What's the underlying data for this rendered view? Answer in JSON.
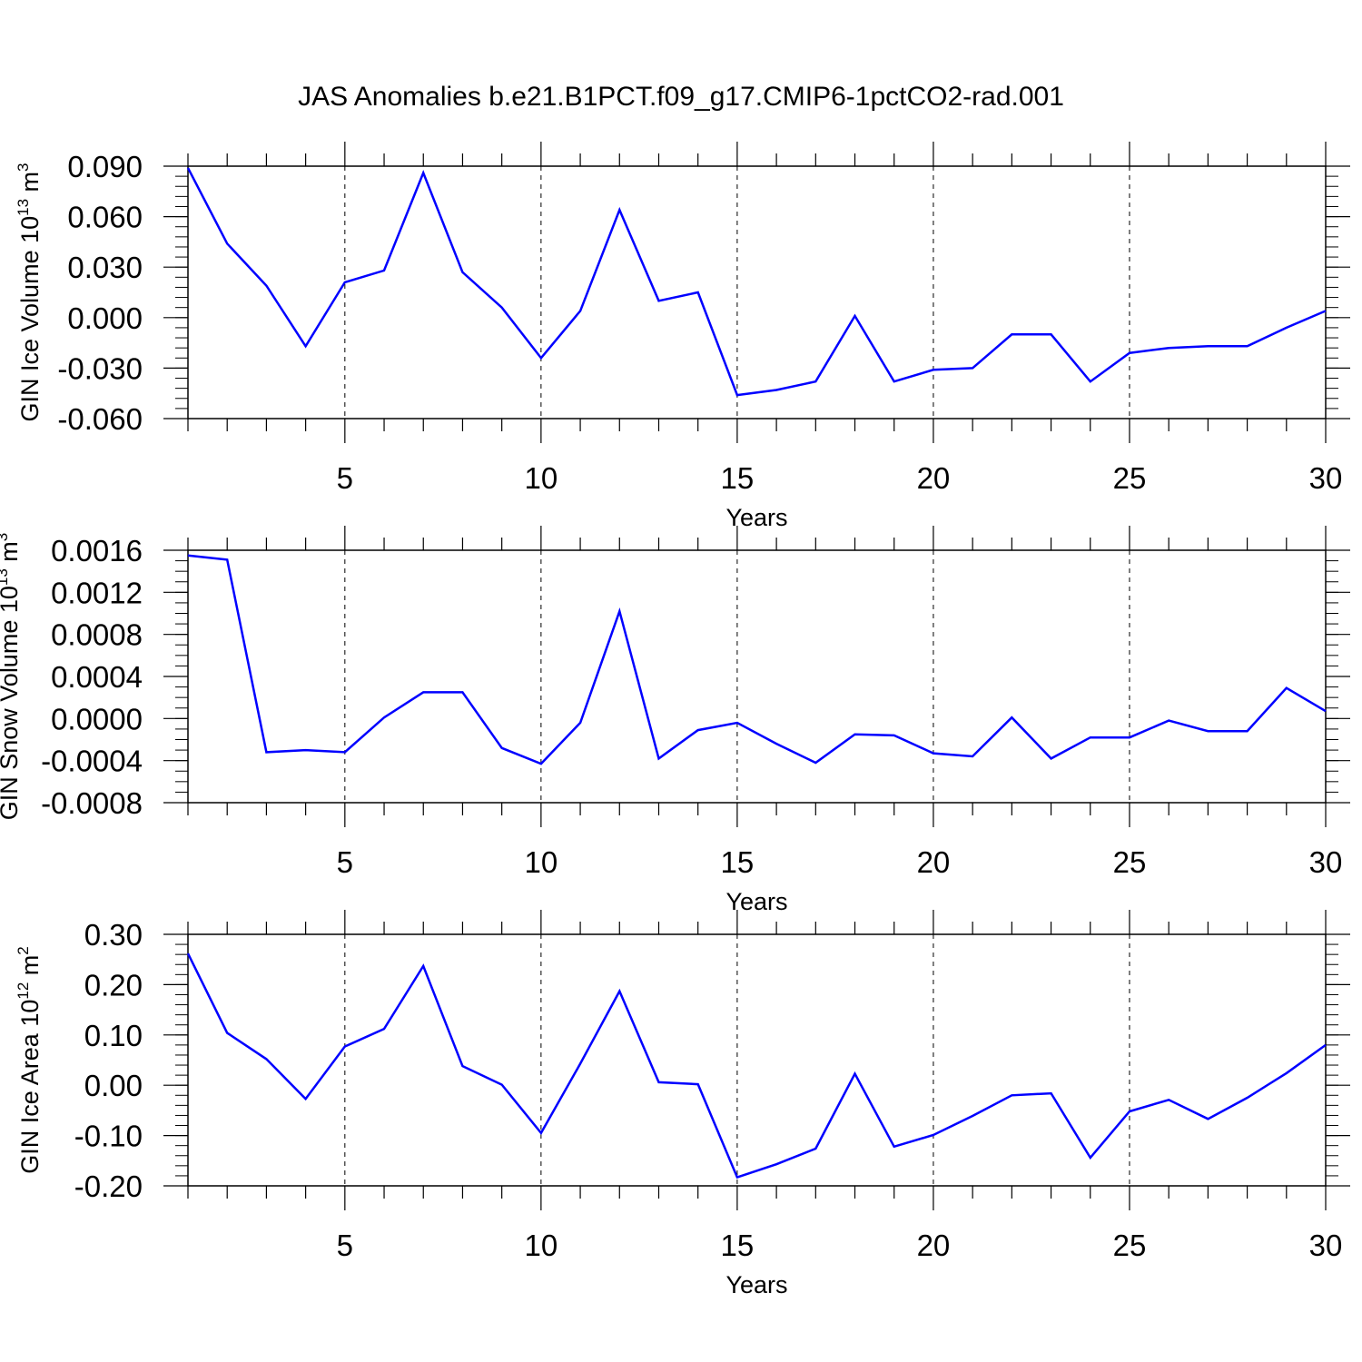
{
  "title": "JAS Anomalies b.e21.B1PCT.f09_g17.CMIP6-1pctCO2-rad.001",
  "chart_data": [
    {
      "type": "line",
      "title": "",
      "xlabel": "Years",
      "ylabel": "GIN Ice Volume 10",
      "ylabel_exp": "13",
      "ylabel_unit": " m",
      "ylabel_unit_exp": "3",
      "series": [
        {
          "name": "GIN Ice Volume",
          "color": "#0000ff",
          "x": [
            1,
            2,
            3,
            4,
            5,
            6,
            7,
            8,
            9,
            10,
            11,
            12,
            13,
            14,
            15,
            16,
            17,
            18,
            19,
            20,
            21,
            22,
            23,
            24,
            25,
            26,
            27,
            28,
            29,
            30
          ],
          "values": [
            0.089,
            0.044,
            0.019,
            -0.017,
            0.021,
            0.028,
            0.086,
            0.027,
            0.006,
            -0.024,
            0.004,
            0.064,
            0.01,
            0.015,
            -0.046,
            -0.043,
            -0.038,
            0.001,
            -0.038,
            -0.031,
            -0.03,
            -0.01,
            -0.01,
            -0.038,
            -0.021,
            -0.018,
            -0.017,
            -0.017,
            -0.006,
            0.004
          ]
        }
      ],
      "xlim": [
        1,
        30
      ],
      "ylim": [
        -0.06,
        0.09
      ],
      "xticks": [
        5,
        10,
        15,
        20,
        25,
        30
      ],
      "xtick_labels": [
        "5",
        "10",
        "15",
        "20",
        "25",
        "30"
      ],
      "yticks": [
        -0.06,
        -0.03,
        0.0,
        0.03,
        0.06,
        0.09
      ],
      "ytick_labels": [
        "-0.060",
        "-0.030",
        "0.000",
        "0.030",
        "0.060",
        "0.090"
      ],
      "yminor_step": 0.006
    },
    {
      "type": "line",
      "title": "",
      "xlabel": "Years",
      "ylabel": "GIN Snow Volume 10",
      "ylabel_exp": "13",
      "ylabel_unit": " m",
      "ylabel_unit_exp": "3",
      "series": [
        {
          "name": "GIN Snow Volume",
          "color": "#0000ff",
          "x": [
            1,
            2,
            3,
            4,
            5,
            6,
            7,
            8,
            9,
            10,
            11,
            12,
            13,
            14,
            15,
            16,
            17,
            18,
            19,
            20,
            21,
            22,
            23,
            24,
            25,
            26,
            27,
            28,
            29,
            30
          ],
          "values": [
            0.00155,
            0.00151,
            -0.00032,
            -0.0003,
            -0.00032,
            1e-05,
            0.00025,
            0.00025,
            -0.00028,
            -0.00043,
            -4e-05,
            0.00102,
            -0.00038,
            -0.00011,
            -4e-05,
            -0.00024,
            -0.00042,
            -0.00015,
            -0.00016,
            -0.00033,
            -0.00036,
            1e-05,
            -0.00038,
            -0.00018,
            -0.00018,
            -2e-05,
            -0.00012,
            -0.00012,
            0.00029,
            7e-05
          ]
        }
      ],
      "xlim": [
        1,
        30
      ],
      "ylim": [
        -0.0008,
        0.0016
      ],
      "xticks": [
        5,
        10,
        15,
        20,
        25,
        30
      ],
      "xtick_labels": [
        "5",
        "10",
        "15",
        "20",
        "25",
        "30"
      ],
      "yticks": [
        -0.0008,
        -0.0004,
        0.0,
        0.0004,
        0.0008,
        0.0012,
        0.0016
      ],
      "ytick_labels": [
        "-0.0008",
        "-0.0004",
        "0.0000",
        "0.0004",
        "0.0008",
        "0.0012",
        "0.0016"
      ],
      "yminor_step": 0.0001
    },
    {
      "type": "line",
      "title": "",
      "xlabel": "Years",
      "ylabel": "GIN Ice Area 10",
      "ylabel_exp": "12",
      "ylabel_unit": " m",
      "ylabel_unit_exp": "2",
      "series": [
        {
          "name": "GIN Ice Area",
          "color": "#0000ff",
          "x": [
            1,
            2,
            3,
            4,
            5,
            6,
            7,
            8,
            9,
            10,
            11,
            12,
            13,
            14,
            15,
            16,
            17,
            18,
            19,
            20,
            21,
            22,
            23,
            24,
            25,
            26,
            27,
            28,
            29,
            30
          ],
          "values": [
            0.262,
            0.104,
            0.052,
            -0.027,
            0.077,
            0.112,
            0.237,
            0.038,
            0.001,
            -0.095,
            0.043,
            0.187,
            0.006,
            0.002,
            -0.183,
            -0.157,
            -0.126,
            0.023,
            -0.122,
            -0.099,
            -0.061,
            -0.02,
            -0.016,
            -0.144,
            -0.052,
            -0.029,
            -0.067,
            -0.025,
            0.024,
            0.08
          ]
        }
      ],
      "xlim": [
        1,
        30
      ],
      "ylim": [
        -0.2,
        0.3
      ],
      "xticks": [
        5,
        10,
        15,
        20,
        25,
        30
      ],
      "xtick_labels": [
        "5",
        "10",
        "15",
        "20",
        "25",
        "30"
      ],
      "yticks": [
        -0.2,
        -0.1,
        0.0,
        0.1,
        0.2,
        0.3
      ],
      "ytick_labels": [
        "-0.20",
        "-0.10",
        "0.00",
        "0.10",
        "0.20",
        "0.30"
      ],
      "yminor_step": 0.02
    }
  ]
}
